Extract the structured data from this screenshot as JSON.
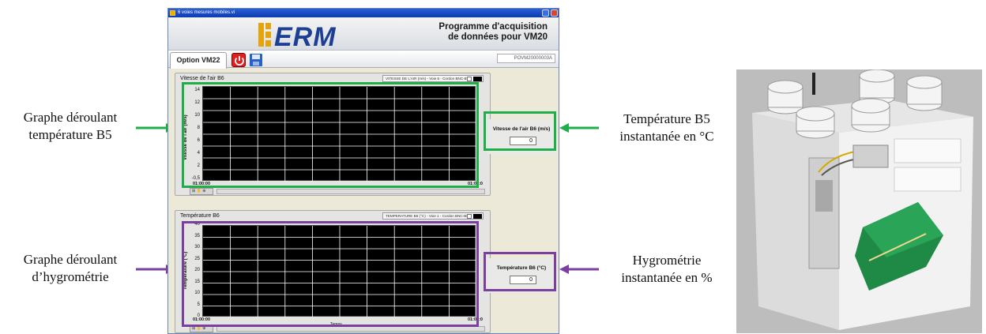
{
  "annotations": {
    "left_top": [
      "Graphe déroulant",
      "température B5"
    ],
    "left_bottom": [
      "Graphe déroulant",
      "d’hygrométrie"
    ],
    "right_top": [
      "Température B5",
      "instantanée en °C"
    ],
    "right_bottom": [
      "Hygrométrie",
      "instantanée en %"
    ]
  },
  "window": {
    "title": "6 voies mesures mobiles.vi",
    "logo_text": "ERM",
    "program_title_line1": "Programme d'acquisition",
    "program_title_line2": "de données pour VM20",
    "tab_label": "Option VM22",
    "reference": "POVM20000003A"
  },
  "chart1": {
    "panel_title": "Vitesse de l'air B6",
    "legend": "VITESSE DE L'AIR (m/s) - Voie 6 - Cordon BNC-BNC",
    "yaxis_label": "Vitesse de l'air (m/s)",
    "yticks": [
      "14",
      "12",
      "10",
      "8",
      "6",
      "4",
      "2",
      "-0,5"
    ],
    "x_start": "01:00:00",
    "x_end": "01:02:0",
    "indicator_label": "Vitesse de l'air B6 (m/s)",
    "indicator_value": "0"
  },
  "chart2": {
    "panel_title": "Température B6",
    "legend": "TEMPERATURE B6 (°C) - Voie 1 - Cordon BNC-BNC",
    "yaxis_label": "Température (°C)",
    "yticks": [
      "40",
      "35",
      "30",
      "25",
      "20",
      "15",
      "10",
      "5",
      "0"
    ],
    "x_start": "01:00:00",
    "x_end": "01:02:0",
    "x_axis_label": "Temps",
    "indicator_label": "Température B6 (°C)",
    "indicator_value": "0"
  },
  "colors": {
    "highlight_top": "#1fae4a",
    "highlight_bottom": "#7b3f9e",
    "plot_bg": "#000000",
    "grid": "#ffffff",
    "logo": "#1c3f94",
    "logo_accent": "#e5a50a"
  }
}
